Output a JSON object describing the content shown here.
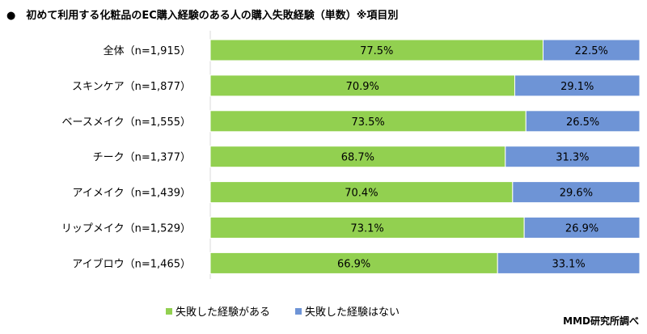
{
  "title": "●　初めて利用する化粧品のEC購入経験のある人の購入失敗経験（単数）※項目別",
  "source": "MMD研究所調べ",
  "colors": {
    "yes": "#92d050",
    "no": "#6e94d6"
  },
  "chart_data": {
    "type": "bar",
    "stacked": true,
    "orientation": "horizontal",
    "title": "初めて利用する化粧品のEC購入経験のある人の購入失敗経験（単数）※項目別",
    "categories": [
      "全体（n=1,915）",
      "スキンケア（n=1,877）",
      "ベースメイク（n=1,555）",
      "チーク（n=1,377）",
      "アイメイク（n=1,439）",
      "リップメイク（n=1,529）",
      "アイブロウ（n=1,465）"
    ],
    "series": [
      {
        "name": "失敗した経験がある",
        "values": [
          77.5,
          70.9,
          73.5,
          68.7,
          70.4,
          73.1,
          66.9
        ]
      },
      {
        "name": "失敗した経験はない",
        "values": [
          22.5,
          29.1,
          26.5,
          31.3,
          29.6,
          26.9,
          33.1
        ]
      }
    ],
    "xlim": [
      0,
      100
    ],
    "legend": "bottom",
    "unit": "%"
  }
}
